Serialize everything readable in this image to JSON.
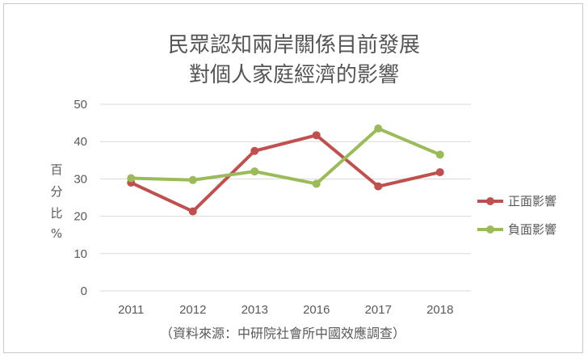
{
  "chart_data": {
    "type": "line",
    "title": [
      "民眾認知兩岸關係目前發展",
      "對個人家庭經濟的影響"
    ],
    "ylabel": [
      "百",
      "分",
      "比",
      "%"
    ],
    "categories": [
      "2011",
      "2012",
      "2013",
      "2016",
      "2017",
      "2018"
    ],
    "ylim": [
      0,
      50
    ],
    "yticks": [
      0,
      10,
      20,
      30,
      40,
      50
    ],
    "grid": true,
    "legend_position": "right",
    "series": [
      {
        "name": "正面影響",
        "color": "#c0504d",
        "values": [
          29,
          21.3,
          37.5,
          41.7,
          28,
          31.8
        ]
      },
      {
        "name": "負面影響",
        "color": "#9bbb59",
        "values": [
          30.2,
          29.7,
          32,
          28.7,
          43.5,
          36.5
        ]
      }
    ],
    "source_note": "（資料來源：中研院社會所中國效應調查）"
  }
}
